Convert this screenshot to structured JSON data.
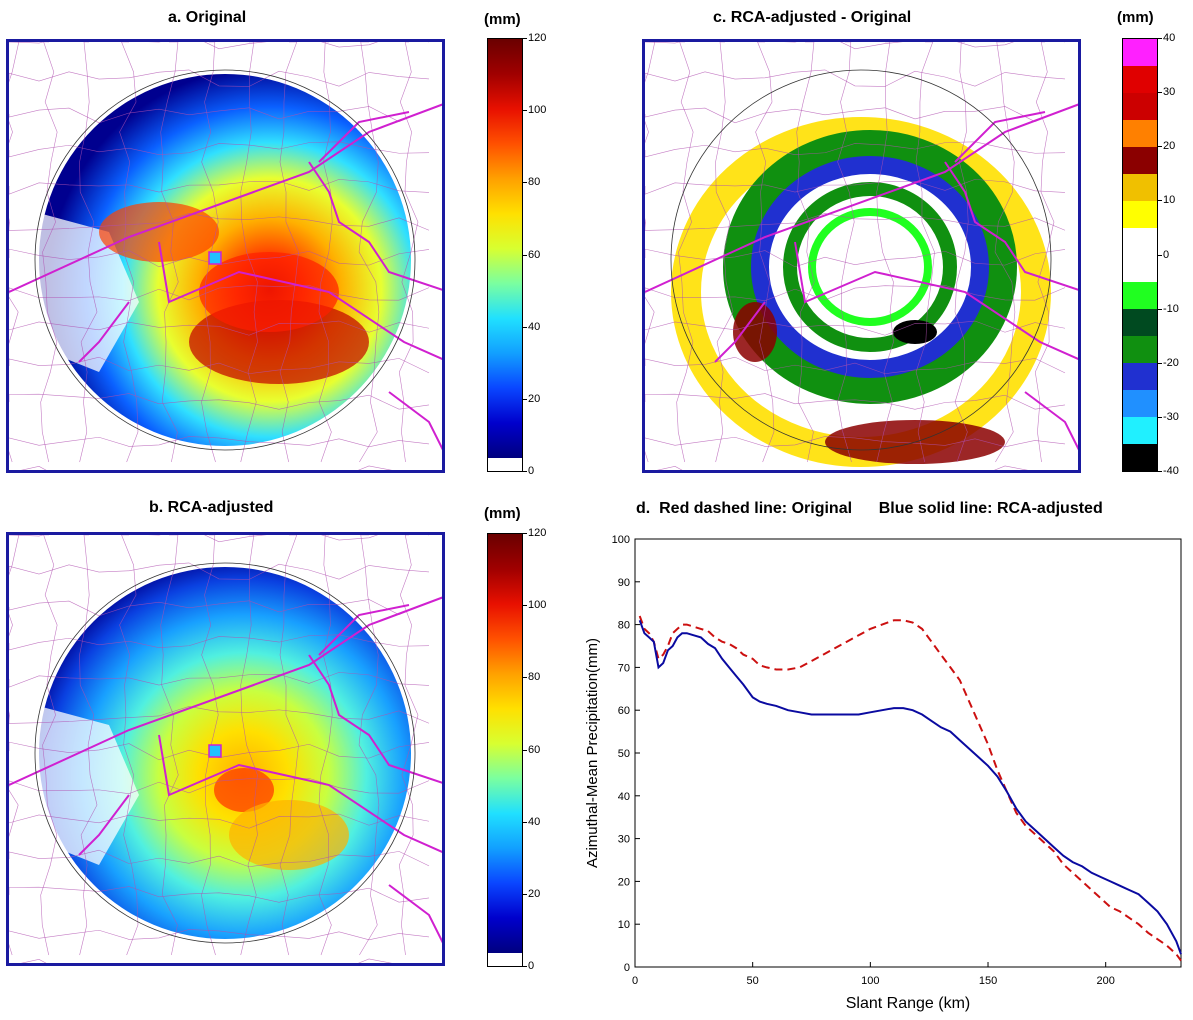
{
  "panels": {
    "a": {
      "title": "a.  Original",
      "unit": "(mm)"
    },
    "b": {
      "title": "b.  RCA-adjusted",
      "unit": "(mm)"
    },
    "c": {
      "title": "c.  RCA-adjusted - Original",
      "unit": "(mm)"
    },
    "d": {
      "title": "d.  Red dashed line: Original      Blue solid line: RCA-adjusted"
    }
  },
  "colorbars": {
    "precip": {
      "ticks": [
        "0",
        "20",
        "40",
        "60",
        "80",
        "100",
        "120"
      ],
      "stops": [
        "#ffffff",
        "#00007f",
        "#0000cc",
        "#0a46ff",
        "#12a0ff",
        "#20e0ff",
        "#7affa0",
        "#d8ff30",
        "#ffe000",
        "#ffa000",
        "#ff5000",
        "#e81000",
        "#a00000",
        "#6a0000"
      ]
    },
    "diff": {
      "ticks": [
        "40",
        "30",
        "20",
        "10",
        "0",
        "-10",
        "-20",
        "-30",
        "-40"
      ],
      "bands": [
        "#ff20ff",
        "#e00000",
        "#cc0000",
        "#ff8000",
        "#8b0000",
        "#f0c000",
        "#ffff00",
        "#ffffff",
        "#ffffff",
        "#20ff20",
        "#004a20",
        "#109010",
        "#2030d0",
        "#2090ff",
        "#20f0ff",
        "#000000"
      ]
    }
  },
  "chart_data": {
    "type": "line",
    "xlabel": "Slant Range (km)",
    "ylabel": "Azimuthal-Mean Precipitation(mm)",
    "xlim": [
      0,
      232
    ],
    "ylim": [
      0,
      100
    ],
    "xticks": [
      0,
      50,
      100,
      150,
      200
    ],
    "yticks": [
      0,
      10,
      20,
      30,
      40,
      50,
      60,
      70,
      80,
      90,
      100
    ],
    "grid": false,
    "series": [
      {
        "color": "#cc1010",
        "dash": "dashed",
        "x": [
          2,
          4,
          6,
          8,
          10,
          12,
          14,
          16,
          18,
          20,
          22,
          25,
          28,
          31,
          34,
          37,
          40,
          43,
          46,
          50,
          53,
          56,
          60,
          65,
          70,
          75,
          80,
          85,
          90,
          95,
          100,
          105,
          110,
          114,
          118,
          122,
          126,
          130,
          134,
          138,
          142,
          146,
          150,
          154,
          158,
          162,
          166,
          170,
          174,
          178,
          182,
          186,
          190,
          194,
          198,
          202,
          206,
          210,
          214,
          218,
          222,
          226,
          230,
          232
        ],
        "y": [
          82,
          79,
          78,
          76,
          72,
          73,
          75,
          78,
          79,
          80,
          80,
          79.5,
          79,
          78.5,
          77,
          76,
          75.5,
          74.5,
          73,
          72,
          70.5,
          70,
          69.5,
          69.5,
          70,
          71.5,
          73,
          74.5,
          76,
          77.5,
          79,
          80,
          81,
          81,
          80.5,
          79,
          76,
          73,
          70,
          67,
          62,
          57,
          52,
          46,
          41,
          36,
          33,
          31,
          29,
          27,
          24,
          22,
          20,
          18,
          16,
          14,
          13,
          11.5,
          10,
          8,
          6.5,
          5,
          3,
          1.5
        ]
      },
      {
        "color": "#0a0aa0",
        "dash": "solid",
        "x": [
          2,
          4,
          6,
          8,
          10,
          12,
          14,
          16,
          18,
          20,
          22,
          25,
          28,
          31,
          34,
          37,
          40,
          43,
          46,
          50,
          53,
          56,
          60,
          65,
          70,
          75,
          80,
          85,
          90,
          95,
          100,
          105,
          110,
          114,
          118,
          122,
          126,
          130,
          134,
          138,
          142,
          146,
          150,
          154,
          158,
          162,
          166,
          170,
          174,
          178,
          182,
          186,
          190,
          194,
          198,
          202,
          206,
          210,
          214,
          218,
          222,
          226,
          230,
          232
        ],
        "y": [
          81,
          78,
          77,
          76,
          70,
          71,
          74,
          75,
          77,
          78,
          78,
          77.5,
          77,
          75.5,
          74.5,
          72,
          70,
          68,
          66,
          63,
          62,
          61.5,
          61,
          60,
          59.5,
          59,
          59,
          59,
          59,
          59,
          59.5,
          60,
          60.5,
          60.5,
          60,
          59,
          57.5,
          56,
          55,
          53,
          51,
          49,
          47,
          44.5,
          41,
          37,
          34,
          32,
          30,
          28,
          26,
          24.5,
          23.5,
          22,
          21,
          20,
          19,
          18,
          17,
          15,
          13,
          10,
          6,
          3
        ]
      }
    ]
  }
}
